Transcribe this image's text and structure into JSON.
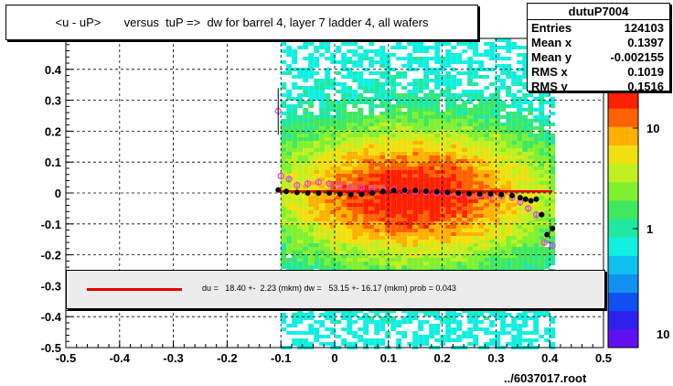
{
  "title": "<u - uP>       versus  tuP =>  dw for barrel 4, layer 7 ladder 4, all wafers",
  "stats": {
    "name": "dutuP7004",
    "rows": [
      {
        "label": "Entries",
        "value": "124103"
      },
      {
        "label": "Mean x",
        "value": "0.1397"
      },
      {
        "label": "Mean y",
        "value": "-0.002155"
      },
      {
        "label": "RMS x",
        "value": "0.1019"
      },
      {
        "label": "RMS y",
        "value": "0.1516"
      }
    ]
  },
  "fit_text": "du =   18.40 +-  2.23 (mkm) dw =   53.15 +- 16.17 (mkm) prob = 0.043",
  "footer": "../6037017.root",
  "colors": {
    "fit_line": "#e00000",
    "black_points": "#000000",
    "magenta_points": "#e040e0"
  },
  "chart_data": {
    "type": "heatmap",
    "title": "<u - uP>       versus  tuP =>  dw for barrel 4, layer 7 ladder 4, all wafers",
    "xlim": [
      -0.5,
      0.5
    ],
    "ylim": [
      -0.5,
      0.5
    ],
    "x_ticks": [
      -0.5,
      -0.4,
      -0.3,
      -0.2,
      -0.1,
      0,
      0.1,
      0.2,
      0.3,
      0.4,
      0.5
    ],
    "x_tick_labels": [
      "-0.5",
      "-0.4",
      "-0.3",
      "-0.2",
      "-0.1",
      "0",
      "0.1",
      "0.2",
      "0.3",
      "0.4",
      "0.5"
    ],
    "y_ticks": [
      -0.5,
      -0.4,
      -0.3,
      -0.2,
      -0.1,
      0,
      0.1,
      0.2,
      0.3,
      0.4
    ],
    "y_tick_labels": [
      "-0.5",
      "-0.4",
      "-0.3",
      "-0.2",
      "-0.1",
      "0",
      "0.1",
      "0.2",
      "0.3",
      "0.4"
    ],
    "grid": true,
    "colorbar": {
      "scale": "log",
      "ticks": [
        1,
        10
      ],
      "tick_labels": [
        "1",
        "10"
      ],
      "top_label": "10"
    },
    "occupied_x_range": [
      -0.1,
      0.41
    ],
    "black_profile": [
      {
        "x": -0.105,
        "y": 0.01
      },
      {
        "x": -0.09,
        "y": 0.005
      },
      {
        "x": -0.07,
        "y": 0.002
      },
      {
        "x": -0.05,
        "y": 0.0
      },
      {
        "x": -0.03,
        "y": 0.0
      },
      {
        "x": -0.01,
        "y": 0.0
      },
      {
        "x": 0.01,
        "y": -0.003
      },
      {
        "x": 0.03,
        "y": -0.005
      },
      {
        "x": 0.05,
        "y": -0.004
      },
      {
        "x": 0.07,
        "y": 0.0
      },
      {
        "x": 0.09,
        "y": 0.005
      },
      {
        "x": 0.11,
        "y": 0.008
      },
      {
        "x": 0.13,
        "y": 0.009
      },
      {
        "x": 0.15,
        "y": 0.008
      },
      {
        "x": 0.17,
        "y": 0.006
      },
      {
        "x": 0.19,
        "y": 0.004
      },
      {
        "x": 0.21,
        "y": 0.002
      },
      {
        "x": 0.23,
        "y": 0.0
      },
      {
        "x": 0.25,
        "y": -0.002
      },
      {
        "x": 0.27,
        "y": -0.003
      },
      {
        "x": 0.29,
        "y": -0.003
      },
      {
        "x": 0.31,
        "y": -0.005
      },
      {
        "x": 0.33,
        "y": -0.008
      },
      {
        "x": 0.345,
        "y": -0.015
      },
      {
        "x": 0.355,
        "y": -0.02
      },
      {
        "x": 0.365,
        "y": -0.025
      },
      {
        "x": 0.375,
        "y": -0.02
      },
      {
        "x": 0.385,
        "y": -0.07
      },
      {
        "x": 0.395,
        "y": -0.135
      },
      {
        "x": 0.405,
        "y": -0.115
      }
    ],
    "magenta_profile": [
      {
        "x": -0.105,
        "y": 0.265
      },
      {
        "x": -0.1,
        "y": 0.055
      },
      {
        "x": -0.085,
        "y": 0.045
      },
      {
        "x": -0.07,
        "y": 0.025
      },
      {
        "x": -0.05,
        "y": 0.03
      },
      {
        "x": -0.03,
        "y": 0.035
      },
      {
        "x": -0.01,
        "y": 0.03
      },
      {
        "x": 0.01,
        "y": 0.025
      },
      {
        "x": 0.03,
        "y": 0.02
      },
      {
        "x": 0.05,
        "y": 0.018
      },
      {
        "x": 0.07,
        "y": 0.015
      },
      {
        "x": 0.09,
        "y": 0.012
      },
      {
        "x": 0.11,
        "y": 0.01
      },
      {
        "x": 0.13,
        "y": 0.008
      },
      {
        "x": 0.15,
        "y": 0.006
      },
      {
        "x": 0.17,
        "y": 0.004
      },
      {
        "x": 0.19,
        "y": 0.002
      },
      {
        "x": 0.21,
        "y": 0.0
      },
      {
        "x": 0.23,
        "y": -0.002
      },
      {
        "x": 0.25,
        "y": -0.004
      },
      {
        "x": 0.27,
        "y": -0.006
      },
      {
        "x": 0.29,
        "y": -0.008
      },
      {
        "x": 0.31,
        "y": -0.01
      },
      {
        "x": 0.33,
        "y": -0.015
      },
      {
        "x": 0.345,
        "y": -0.03
      },
      {
        "x": 0.36,
        "y": -0.05
      },
      {
        "x": 0.375,
        "y": -0.07
      },
      {
        "x": 0.39,
        "y": -0.16
      },
      {
        "x": 0.405,
        "y": -0.17
      }
    ],
    "fit_line": {
      "x": [
        -0.105,
        0.405
      ],
      "y": [
        0.005,
        0.005
      ]
    }
  }
}
